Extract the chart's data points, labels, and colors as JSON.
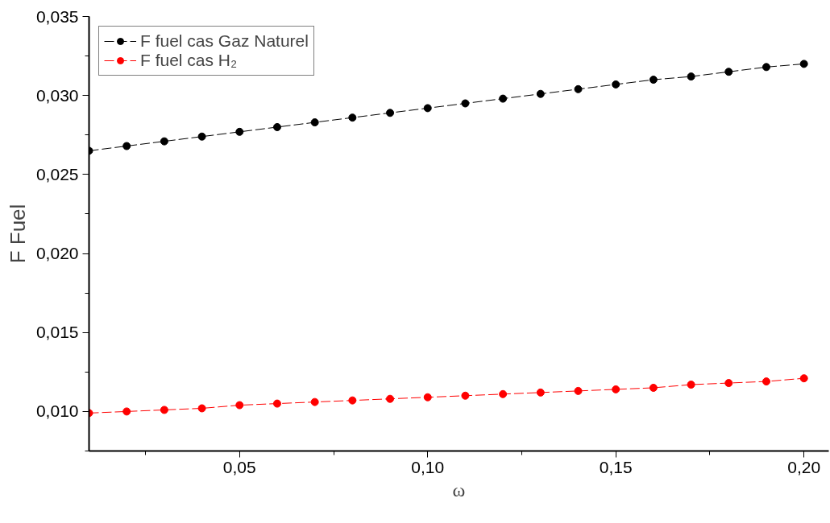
{
  "chart_data": {
    "type": "line",
    "xlabel": "ω",
    "ylabel": "F Fuel",
    "x": [
      0.01,
      0.02,
      0.03,
      0.04,
      0.05,
      0.06,
      0.07,
      0.08,
      0.09,
      0.1,
      0.11,
      0.12,
      0.13,
      0.14,
      0.15,
      0.16,
      0.17,
      0.18,
      0.19,
      0.2
    ],
    "series": [
      {
        "name": "F fuel cas Gaz Naturel",
        "color": "#000000",
        "values": [
          0.0265,
          0.0268,
          0.0271,
          0.0274,
          0.0277,
          0.028,
          0.0283,
          0.0286,
          0.0289,
          0.0292,
          0.0295,
          0.0298,
          0.0301,
          0.0304,
          0.0307,
          0.031,
          0.0312,
          0.0315,
          0.0318,
          0.032
        ]
      },
      {
        "name": "F fuel cas H₂",
        "color": "#ff0000",
        "values": [
          0.0099,
          0.01,
          0.0101,
          0.0102,
          0.0104,
          0.0105,
          0.0106,
          0.0107,
          0.0108,
          0.0109,
          0.011,
          0.0111,
          0.0112,
          0.0113,
          0.0114,
          0.0115,
          0.0117,
          0.0118,
          0.0119,
          0.0121
        ]
      }
    ],
    "xlim": [
      0.01,
      0.2066
    ],
    "ylim": [
      0.0075,
      0.035
    ],
    "xticks": [
      {
        "value": 0.05,
        "label": "0,05"
      },
      {
        "value": 0.1,
        "label": "0,10"
      },
      {
        "value": 0.15,
        "label": "0,15"
      },
      {
        "value": 0.2,
        "label": "0,20"
      }
    ],
    "yticks": [
      {
        "value": 0.01,
        "label": "0,010"
      },
      {
        "value": 0.015,
        "label": "0,015"
      },
      {
        "value": 0.02,
        "label": "0,020"
      },
      {
        "value": 0.025,
        "label": "0,025"
      },
      {
        "value": 0.03,
        "label": "0,030"
      },
      {
        "value": 0.035,
        "label": "0,035"
      }
    ],
    "grid": false,
    "legend": "top left",
    "marker": "circle",
    "line_style": "dashed"
  }
}
